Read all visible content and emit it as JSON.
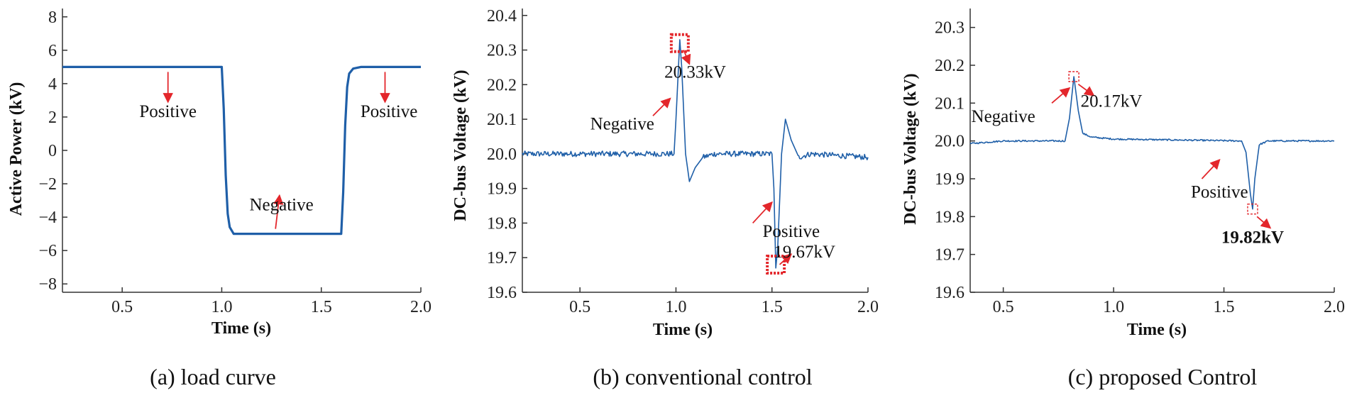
{
  "chart_data": [
    {
      "id": "a",
      "type": "line",
      "caption": "(a) load curve",
      "xlabel": "Time (s)",
      "ylabel": "Active Power (kV)",
      "xlim": [
        0.2,
        2.0
      ],
      "ylim": [
        -8.5,
        8.5
      ],
      "xticks": [
        0.5,
        1.0,
        1.5,
        2.0
      ],
      "xtick_labels": [
        "0.5",
        "1.0",
        "1.5",
        "2.0"
      ],
      "yticks": [
        8,
        6,
        4,
        2,
        0,
        -2,
        -4,
        -6,
        -8
      ],
      "ytick_labels": [
        "8",
        "6",
        "4",
        "2",
        "0",
        "−2",
        "−4",
        "−6",
        "−8"
      ],
      "line_color": "#1f5fa8",
      "series": [
        {
          "name": "load",
          "x": [
            0.2,
            1.0,
            1.01,
            1.02,
            1.03,
            1.04,
            1.06,
            1.6,
            1.61,
            1.62,
            1.63,
            1.64,
            1.66,
            1.7,
            2.0
          ],
          "y": [
            5,
            5,
            2.5,
            -1.5,
            -3.8,
            -4.6,
            -5,
            -5,
            -2.5,
            1.5,
            3.8,
            4.6,
            4.9,
            5,
            5
          ]
        }
      ],
      "annotations": [
        {
          "text": "Positive",
          "x": 0.73,
          "y": 2.0,
          "arrow_from": [
            0.73,
            4.7
          ],
          "arrow_to": [
            0.73,
            2.9
          ]
        },
        {
          "text": "Negative",
          "x": 1.3,
          "y": -3.6,
          "arrow_from": [
            1.27,
            -4.7
          ],
          "arrow_to": [
            1.29,
            -2.7
          ]
        },
        {
          "text": "Positive",
          "x": 1.84,
          "y": 2.0,
          "arrow_from": [
            1.82,
            4.7
          ],
          "arrow_to": [
            1.82,
            2.9
          ]
        }
      ]
    },
    {
      "id": "b",
      "type": "line",
      "caption": "(b) conventional control",
      "xlabel": "Time (s)",
      "ylabel": "DC-bus Voltage (kV)",
      "xlim": [
        0.2,
        2.0
      ],
      "ylim": [
        19.6,
        20.42
      ],
      "xticks": [
        0.5,
        1.0,
        1.5,
        2.0
      ],
      "xtick_labels": [
        "0.5",
        "1.0",
        "1.5",
        "2.0"
      ],
      "yticks": [
        20.4,
        20.3,
        20.2,
        20.1,
        20.0,
        19.9,
        19.8,
        19.7,
        19.6
      ],
      "ytick_labels": [
        "20.4",
        "20.3",
        "20.2",
        "20.1",
        "20.0",
        "19.9",
        "19.8",
        "19.7",
        "19.6"
      ],
      "line_color": "#1f5fa8",
      "series": [
        {
          "name": "conventional",
          "baseline": 20.0,
          "noise": 0.008,
          "x": [
            0.2,
            0.99,
            1.0,
            1.02,
            1.03,
            1.05,
            1.07,
            1.1,
            1.14,
            1.2,
            1.5,
            1.51,
            1.52,
            1.53,
            1.55,
            1.57,
            1.6,
            1.64,
            1.7,
            2.0
          ],
          "y": [
            20.0,
            20.0,
            20.1,
            20.33,
            20.25,
            20.0,
            19.92,
            19.96,
            19.99,
            20.0,
            20.0,
            19.9,
            19.67,
            19.73,
            20.0,
            20.1,
            20.04,
            19.99,
            20.0,
            19.99
          ]
        }
      ],
      "annotations": [
        {
          "text": "20.33kV",
          "x": 1.1,
          "y": 20.22,
          "marker": [
            1.02,
            20.32
          ],
          "arrow_from": [
            1.04,
            20.3
          ],
          "arrow_to": [
            1.07,
            20.26
          ]
        },
        {
          "text": "Negative",
          "x": 0.72,
          "y": 20.07,
          "arrow_from": [
            0.88,
            20.11
          ],
          "arrow_to": [
            0.97,
            20.16
          ]
        },
        {
          "text": "Positive",
          "x": 1.6,
          "y": 19.76,
          "arrow_from": [
            1.4,
            19.8
          ],
          "arrow_to": [
            1.5,
            19.86
          ]
        },
        {
          "text": "19.67kV",
          "x": 1.67,
          "y": 19.7,
          "marker": [
            1.52,
            19.68
          ],
          "arrow_from": [
            1.54,
            19.68
          ],
          "arrow_to": [
            1.6,
            19.71
          ]
        }
      ]
    },
    {
      "id": "c",
      "type": "line",
      "caption": "(c) proposed Control",
      "xlabel": "Time (s)",
      "ylabel": "DC-bus Voltage (kV)",
      "xlim": [
        0.35,
        2.0
      ],
      "ylim": [
        19.6,
        20.35
      ],
      "xticks": [
        0.5,
        1.0,
        1.5,
        2.0
      ],
      "xtick_labels": [
        "0.5",
        "1.0",
        "1.5",
        "2.0"
      ],
      "yticks": [
        20.3,
        20.2,
        20.1,
        20.0,
        19.9,
        19.8,
        19.7,
        19.6
      ],
      "ytick_labels": [
        "20.3",
        "20.2",
        "20.1",
        "20.0",
        "19.9",
        "19.8",
        "19.7",
        "19.6"
      ],
      "line_color": "#1f5fa8",
      "series": [
        {
          "name": "proposed",
          "baseline": 20.0,
          "noise": 0.002,
          "x": [
            0.35,
            0.5,
            0.78,
            0.8,
            0.82,
            0.84,
            0.86,
            0.9,
            1.0,
            1.58,
            1.6,
            1.62,
            1.63,
            1.64,
            1.66,
            1.7,
            1.8,
            2.0
          ],
          "y": [
            19.993,
            20.0,
            20.0,
            20.06,
            20.17,
            20.08,
            20.02,
            20.01,
            20.005,
            20.0,
            19.97,
            19.86,
            19.82,
            19.9,
            19.99,
            20.0,
            20.0,
            20.0
          ]
        }
      ],
      "annotations": [
        {
          "text": "Negative",
          "x": 0.5,
          "y": 20.05,
          "arrow_from": [
            0.72,
            20.1
          ],
          "arrow_to": [
            0.8,
            20.14
          ]
        },
        {
          "text": "20.17kV",
          "x": 0.99,
          "y": 20.09,
          "marker": [
            0.82,
            20.17
          ],
          "arrow_from": [
            0.84,
            20.15
          ],
          "arrow_to": [
            0.91,
            20.12
          ]
        },
        {
          "text": "Positive",
          "x": 1.48,
          "y": 19.85,
          "arrow_from": [
            1.4,
            19.9
          ],
          "arrow_to": [
            1.48,
            19.95
          ]
        },
        {
          "text": "19.82kV",
          "x": 1.63,
          "y": 19.73,
          "bold": true,
          "marker": [
            1.63,
            19.82
          ],
          "arrow_from": [
            1.65,
            19.8
          ],
          "arrow_to": [
            1.71,
            19.77
          ]
        }
      ]
    }
  ]
}
